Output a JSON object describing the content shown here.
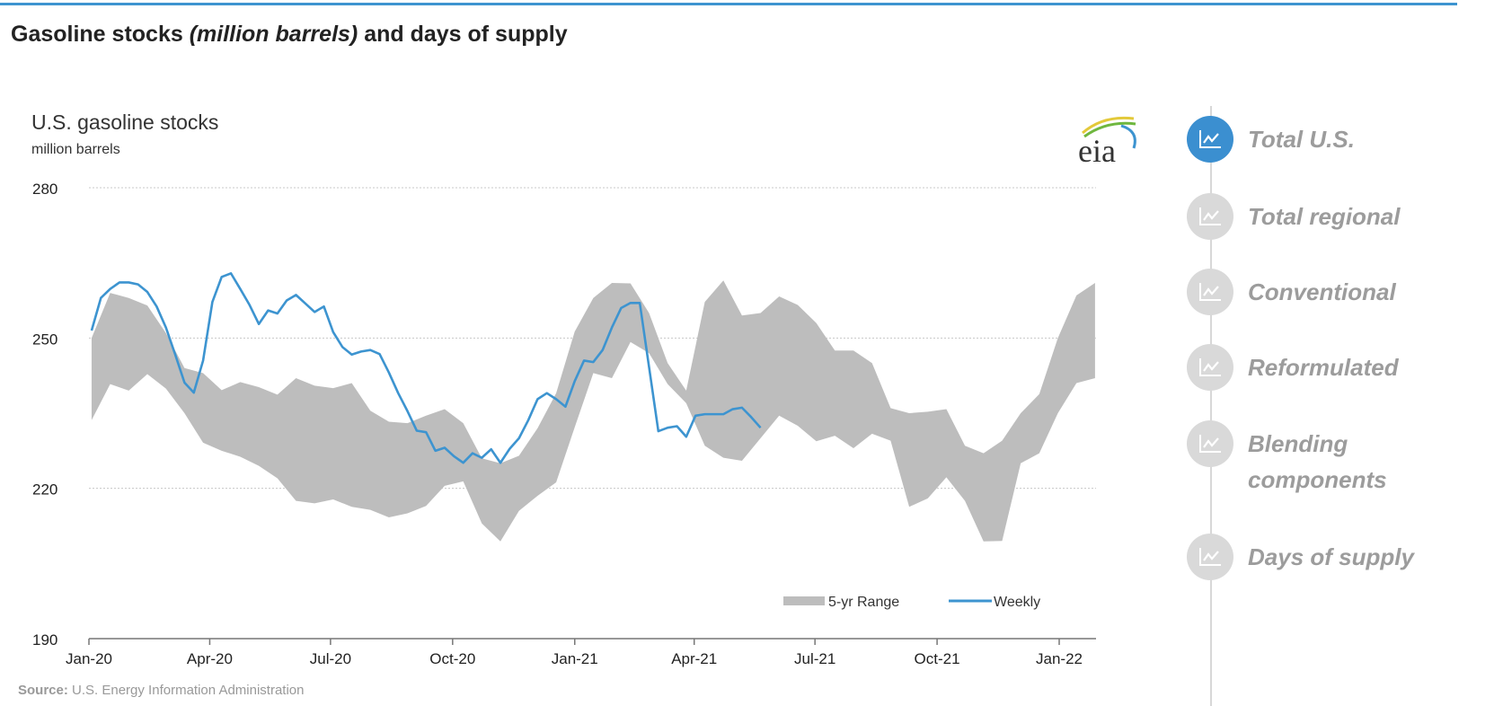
{
  "header": {
    "title_pre": "Gasoline stocks ",
    "title_italic": "(million barrels)",
    "title_post": " and days of supply"
  },
  "sidebar": {
    "items": [
      {
        "label": "Total U.S.",
        "active": true,
        "icon": "line-chart-icon"
      },
      {
        "label": "Total regional",
        "active": false,
        "icon": "line-chart-icon"
      },
      {
        "label": "Conventional",
        "active": false,
        "icon": "line-chart-icon"
      },
      {
        "label": "Reformulated",
        "active": false,
        "icon": "line-chart-icon"
      },
      {
        "label": "Blending",
        "label2": "components",
        "active": false,
        "icon": "line-chart-icon"
      },
      {
        "label": "Days of supply",
        "active": false,
        "icon": "line-chart-icon"
      }
    ],
    "colors": {
      "active": "#3b8fd0",
      "inactive": "#d9d9d9",
      "text": "#9c9c9c"
    }
  },
  "logo": {
    "text": "eia"
  },
  "chart_data": {
    "type": "area",
    "title": "U.S. gasoline stocks",
    "subtitle": "million barrels",
    "ylim": [
      190,
      280
    ],
    "yticks": [
      "280",
      "250",
      "220",
      "190"
    ],
    "xticks": [
      {
        "label": "Jan-20",
        "date": "2020-01-01"
      },
      {
        "label": "Apr-20",
        "date": "2020-04-01"
      },
      {
        "label": "Jul-20",
        "date": "2020-07-01"
      },
      {
        "label": "Oct-20",
        "date": "2020-10-01"
      },
      {
        "label": "Jan-21",
        "date": "2021-01-01"
      },
      {
        "label": "Apr-21",
        "date": "2021-04-01"
      },
      {
        "label": "Jul-21",
        "date": "2021-07-01"
      },
      {
        "label": "Oct-21",
        "date": "2021-10-01"
      },
      {
        "label": "Jan-22",
        "date": "2022-01-01"
      }
    ],
    "grid": "horizontal dotted",
    "legend_position": "bottom-right",
    "source_label": "Source:",
    "source_text": " U.S. Energy Information Administration",
    "series": [
      {
        "name": "5-yr Range",
        "kind": "band",
        "color": "#bdbdbd",
        "x": [
          "2020-01-03",
          "2020-01-17",
          "2020-01-31",
          "2020-02-14",
          "2020-02-28",
          "2020-03-13",
          "2020-03-27",
          "2020-04-10",
          "2020-04-24",
          "2020-05-08",
          "2020-05-22",
          "2020-06-05",
          "2020-06-19",
          "2020-07-03",
          "2020-07-17",
          "2020-07-31",
          "2020-08-14",
          "2020-08-28",
          "2020-09-11",
          "2020-09-25",
          "2020-10-09",
          "2020-10-23",
          "2020-11-06",
          "2020-11-20",
          "2020-12-04",
          "2020-12-18",
          "2021-01-01",
          "2021-01-15",
          "2021-01-29",
          "2021-02-12",
          "2021-02-26",
          "2021-03-12",
          "2021-03-26",
          "2021-04-09",
          "2021-04-23",
          "2021-05-07",
          "2021-05-21",
          "2021-06-04",
          "2021-06-18",
          "2021-07-02",
          "2021-07-16",
          "2021-07-30",
          "2021-08-13",
          "2021-08-27",
          "2021-09-10",
          "2021-09-24",
          "2021-10-08",
          "2021-10-22",
          "2021-11-05",
          "2021-11-19",
          "2021-12-03",
          "2021-12-17",
          "2021-12-31",
          "2022-01-14",
          "2022-01-28"
        ],
        "upper": [
          250,
          259,
          258,
          256.5,
          251,
          244,
          243,
          239.6,
          241.2,
          240.2,
          238.7,
          242,
          240.5,
          240,
          241,
          235.5,
          233.3,
          233,
          234.5,
          235.8,
          233,
          226,
          225,
          226.5,
          232,
          239,
          251.3,
          258,
          261,
          260.9,
          255,
          245,
          239.5,
          257.2,
          261.5,
          254.5,
          255,
          258.3,
          256.6,
          253,
          247.5,
          247.5,
          245,
          236,
          235,
          235.3,
          235.8,
          228.5,
          227,
          229.5,
          235,
          238.8,
          250,
          258.5,
          261
        ],
        "lower": [
          233.6,
          240.8,
          239.5,
          242.8,
          239.9,
          235,
          229.1,
          227.5,
          226.3,
          224.5,
          222,
          217.5,
          217,
          217.8,
          216.3,
          215.7,
          214.2,
          215,
          216.5,
          220.5,
          221.4,
          213,
          209.4,
          215.5,
          218.5,
          221.2,
          232.2,
          243,
          242,
          249.2,
          247,
          240.8,
          237,
          228.5,
          226.1,
          225.5,
          230,
          234.5,
          232.5,
          229.4,
          230.5,
          228,
          230.9,
          229.5,
          216.3,
          218,
          222.2,
          217.5,
          209.4,
          209.5,
          225,
          227,
          235,
          241,
          242
        ]
      },
      {
        "name": "Weekly",
        "kind": "line",
        "color": "#3d94d0",
        "x": [
          "2020-01-03",
          "2020-01-10",
          "2020-01-17",
          "2020-01-24",
          "2020-01-31",
          "2020-02-07",
          "2020-02-14",
          "2020-02-21",
          "2020-02-28",
          "2020-03-06",
          "2020-03-13",
          "2020-03-20",
          "2020-03-27",
          "2020-04-03",
          "2020-04-10",
          "2020-04-17",
          "2020-04-24",
          "2020-05-01",
          "2020-05-08",
          "2020-05-15",
          "2020-05-22",
          "2020-05-29",
          "2020-06-05",
          "2020-06-12",
          "2020-06-19",
          "2020-06-26",
          "2020-07-03",
          "2020-07-10",
          "2020-07-17",
          "2020-07-24",
          "2020-07-31",
          "2020-08-07",
          "2020-08-14",
          "2020-08-21",
          "2020-08-28",
          "2020-09-04",
          "2020-09-11",
          "2020-09-18",
          "2020-09-25",
          "2020-10-02",
          "2020-10-09",
          "2020-10-16",
          "2020-10-23",
          "2020-10-30",
          "2020-11-06",
          "2020-11-13",
          "2020-11-20",
          "2020-11-27",
          "2020-12-04",
          "2020-12-11",
          "2020-12-18",
          "2020-12-25",
          "2021-01-01",
          "2021-01-08",
          "2021-01-15",
          "2021-01-22",
          "2021-01-29",
          "2021-02-05",
          "2021-02-12",
          "2021-02-19",
          "2021-02-26",
          "2021-03-05",
          "2021-03-12",
          "2021-03-19",
          "2021-03-26",
          "2021-04-02",
          "2021-04-09",
          "2021-04-16",
          "2021-04-23",
          "2021-04-30",
          "2021-05-07",
          "2021-05-14",
          "2021-05-21"
        ],
        "y": [
          251.5,
          258,
          259.8,
          261.1,
          261.1,
          260.7,
          259.2,
          256.3,
          252.1,
          246.7,
          241.1,
          239.1,
          245.5,
          257.2,
          262.2,
          262.9,
          259.8,
          256.6,
          252.8,
          255.5,
          254.9,
          257.5,
          258.6,
          256.9,
          255.2,
          256.3,
          251.2,
          248.2,
          246.7,
          247.3,
          247.6,
          246.8,
          243.1,
          239,
          235.4,
          231.5,
          231.2,
          227.5,
          228.1,
          226.4,
          225.1,
          227,
          226.1,
          227.8,
          225.1,
          227.9,
          230,
          233.6,
          237.8,
          239,
          237.8,
          236.3,
          241.4,
          245.5,
          245.2,
          247.6,
          252.1,
          256,
          257,
          257,
          244.2,
          231.4,
          232.1,
          232.4,
          230.3,
          234.5,
          234.8,
          234.8,
          234.8,
          235.8,
          236.1,
          234.2,
          232.1
        ]
      }
    ]
  }
}
